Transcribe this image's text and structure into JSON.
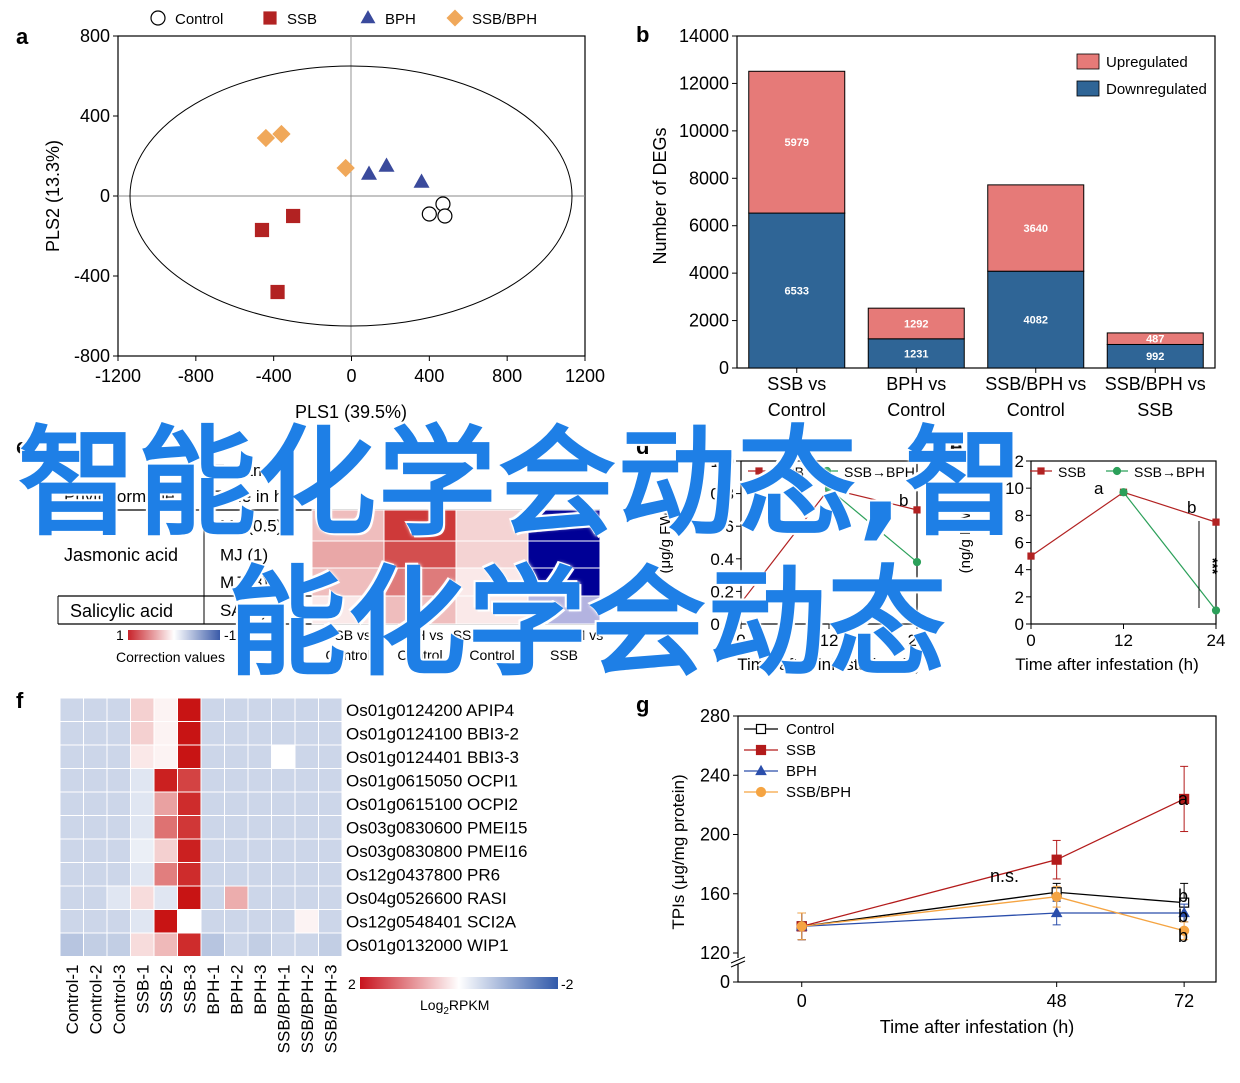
{
  "panels": {
    "a": "a",
    "b": "b",
    "c": "c",
    "d": "d",
    "e": "e",
    "f": "f",
    "g": "g"
  },
  "watermark": {
    "line1": "智能化学会动态,智",
    "line2": "能化学会动态",
    "color": "#1e7fe6"
  },
  "chart_data": [
    {
      "id": "a",
      "type": "scatter",
      "xlabel": "PLS1 (39.5%)",
      "ylabel": "PLS2 (13.3%)",
      "xlim": [
        -1200,
        1200
      ],
      "ylim": [
        -800,
        800
      ],
      "xticks": [
        -1200,
        -800,
        -400,
        0,
        400,
        800,
        1200
      ],
      "yticks": [
        800,
        400,
        0,
        -400,
        -800
      ],
      "legend": [
        "Control",
        "SSB",
        "BPH",
        "SSB/BPH"
      ],
      "series": [
        {
          "name": "Control",
          "marker": "circle",
          "color": "#ffffff",
          "points": [
            [
              470,
              -40
            ],
            [
              400,
              -90
            ],
            [
              480,
              -100
            ]
          ]
        },
        {
          "name": "SSB",
          "marker": "square",
          "color": "#b22222",
          "points": [
            [
              -300,
              -100
            ],
            [
              -460,
              -170
            ],
            [
              -380,
              -480
            ]
          ]
        },
        {
          "name": "BPH",
          "marker": "triangle",
          "color": "#3a4a9c",
          "points": [
            [
              90,
              110
            ],
            [
              180,
              150
            ],
            [
              360,
              70
            ]
          ]
        },
        {
          "name": "SSB/BPH",
          "marker": "diamond",
          "color": "#f0a85a",
          "points": [
            [
              -440,
              290
            ],
            [
              -360,
              310
            ],
            [
              -30,
              140
            ]
          ]
        }
      ]
    },
    {
      "id": "b",
      "type": "bar",
      "stacked": true,
      "ylabel": "Number of DEGs",
      "ylim": [
        0,
        14000
      ],
      "yticks": [
        0,
        2000,
        4000,
        6000,
        8000,
        10000,
        12000,
        14000
      ],
      "categories": [
        [
          "SSB vs",
          "Control"
        ],
        [
          "BPH vs",
          "Control"
        ],
        [
          "SSB/BPH vs",
          "Control"
        ],
        [
          "SSB/BPH vs",
          "SSB"
        ]
      ],
      "series": [
        {
          "name": "Downregulated",
          "color": "#2f6596",
          "values": [
            6533,
            1231,
            4082,
            992
          ]
        },
        {
          "name": "Upregulated",
          "color": "#e67a78",
          "values": [
            5979,
            1292,
            3640,
            487
          ]
        }
      ],
      "legend_position": "top-right"
    },
    {
      "id": "c",
      "type": "heatmap",
      "header": [
        "Phytohormone",
        "Treatment",
        "Time in h"
      ],
      "groups": [
        {
          "name": "Jasmonic acid",
          "rows": [
            "MJ (0.5)",
            "MJ (1)",
            "MJ (3)"
          ]
        },
        {
          "name": "Salicylic acid",
          "rows": [
            "SA (3)"
          ]
        }
      ],
      "columns": [
        [
          "SSB vs",
          "Control"
        ],
        [
          "BPH vs",
          "Control"
        ],
        [
          "SSB/BPH vs",
          "Control"
        ],
        [
          "SSB/BPH vs",
          "SSB"
        ]
      ],
      "values": [
        [
          0.3,
          0.9,
          0.2,
          -1
        ],
        [
          0.4,
          0.8,
          0.2,
          -1
        ],
        [
          0.3,
          0.6,
          0.1,
          -1
        ],
        [
          0.1,
          0.3,
          0.1,
          -0.3
        ]
      ],
      "colorbar": {
        "min_label": "1",
        "max_label": "-1",
        "title": "Correction values"
      }
    },
    {
      "id": "d",
      "type": "line",
      "xlabel": "Time after infestation (h)",
      "ylabel": "(μg/g FW)",
      "xlim": [
        0,
        24
      ],
      "ylim": [
        0,
        1.0
      ],
      "xticks": [
        0,
        12,
        24
      ],
      "yticks": [
        0.0,
        0.2,
        0.4,
        0.6,
        0.8,
        1.0
      ],
      "legend": [
        "SSB",
        "SSB→BPH"
      ],
      "series": [
        {
          "name": "SSB",
          "color": "#b22222",
          "x": [
            0,
            12,
            24
          ],
          "y": [
            0.13,
            0.83,
            0.7
          ]
        },
        {
          "name": "SSB→BPH",
          "color": "#2ca05a",
          "x": [
            12,
            24
          ],
          "y": [
            0.83,
            0.38
          ]
        }
      ],
      "annotations": [
        "c",
        "b"
      ]
    },
    {
      "id": "e",
      "type": "line",
      "xlabel": "Time after infestation (h)",
      "ylabel": "(ng/g FW)",
      "xlim": [
        0,
        24
      ],
      "ylim": [
        0,
        12
      ],
      "xticks": [
        0,
        12,
        24
      ],
      "yticks": [
        0,
        2,
        4,
        6,
        8,
        10,
        12
      ],
      "legend": [
        "SSB",
        "SSB→BPH"
      ],
      "series": [
        {
          "name": "SSB",
          "color": "#b22222",
          "x": [
            0,
            12,
            24
          ],
          "y": [
            5.0,
            9.7,
            7.5
          ]
        },
        {
          "name": "SSB→BPH",
          "color": "#2ca05a",
          "x": [
            12,
            24
          ],
          "y": [
            9.7,
            1.0
          ]
        }
      ],
      "annotations": [
        "a",
        "b",
        "***"
      ]
    },
    {
      "id": "f",
      "type": "heatmap",
      "columns": [
        "Control-1",
        "Control-2",
        "Control-3",
        "SSB-1",
        "SSB-2",
        "SSB-3",
        "BPH-1",
        "BPH-2",
        "BPH-3",
        "SSB/BPH-1",
        "SSB/BPH-2",
        "SSB/BPH-3"
      ],
      "rows": [
        "Os01g0124200 APIP4",
        "Os01g0124100 BBI3-2",
        "Os01g0124401 BBI3-3",
        "Os01g0615050 OCPI1",
        "Os01g0615100 OCPI2",
        "Os03g0830600 PMEI15",
        "Os03g0830800 PMEI16",
        "Os12g0437800 PR6",
        "Os04g0526600 RASI",
        "Os12g0548401 SCI2A",
        "Os01g0132000 WIP1"
      ],
      "values": [
        [
          -0.5,
          -0.5,
          -0.5,
          0.4,
          0.1,
          2.0,
          -0.5,
          -0.5,
          -0.5,
          -0.5,
          -0.5,
          -0.5
        ],
        [
          -0.5,
          -0.5,
          -0.5,
          0.4,
          0.1,
          2.0,
          -0.5,
          -0.5,
          -0.5,
          -0.5,
          -0.5,
          -0.5
        ],
        [
          -0.5,
          -0.5,
          -0.5,
          0.2,
          0.1,
          2.0,
          -0.5,
          -0.5,
          -0.5,
          0.0,
          -0.5,
          -0.5
        ],
        [
          -0.5,
          -0.5,
          -0.5,
          -0.3,
          1.9,
          1.6,
          -0.5,
          -0.5,
          -0.5,
          -0.5,
          -0.5,
          -0.5
        ],
        [
          -0.5,
          -0.5,
          -0.5,
          -0.3,
          0.8,
          1.8,
          -0.5,
          -0.5,
          -0.5,
          -0.5,
          -0.5,
          -0.5
        ],
        [
          -0.5,
          -0.5,
          -0.5,
          -0.3,
          1.2,
          1.7,
          -0.5,
          -0.5,
          -0.5,
          -0.5,
          -0.5,
          -0.5
        ],
        [
          -0.5,
          -0.5,
          -0.5,
          -0.2,
          0.4,
          1.9,
          -0.5,
          -0.5,
          -0.5,
          -0.5,
          -0.5,
          -0.5
        ],
        [
          -0.5,
          -0.5,
          -0.5,
          -0.3,
          1.1,
          1.8,
          -0.5,
          -0.5,
          -0.5,
          -0.5,
          -0.5,
          -0.5
        ],
        [
          -0.5,
          -0.5,
          -0.3,
          0.3,
          -0.3,
          2.0,
          -0.5,
          0.7,
          -0.5,
          -0.5,
          -0.5,
          -0.5
        ],
        [
          -0.5,
          -0.5,
          -0.5,
          -0.3,
          2.0,
          0.0,
          -0.5,
          -0.5,
          -0.5,
          -0.5,
          0.1,
          -0.5
        ],
        [
          -0.7,
          -0.6,
          -0.6,
          0.3,
          0.6,
          1.8,
          -0.7,
          -0.5,
          -0.6,
          -0.5,
          -0.5,
          -0.6
        ]
      ],
      "colorbar": {
        "min_label": "2",
        "max_label": "-2",
        "title_main": "Log",
        "title_sub": "2",
        "title_end": "RPKM"
      }
    },
    {
      "id": "g",
      "type": "line",
      "xlabel": "Time after infestation (h)",
      "ylabel": "TPIs (μg/mg protein)",
      "x": [
        0,
        48,
        72
      ],
      "xticks": [
        0,
        48,
        72
      ],
      "yticks": [
        "0",
        "120",
        "160",
        "200",
        "240",
        "280"
      ],
      "axis_break": true,
      "legend_position": "top-left",
      "series": [
        {
          "name": "Control",
          "color": "#000000",
          "marker": "open-square",
          "y": [
            138,
            161,
            154
          ],
          "err": [
            9,
            6,
            13
          ]
        },
        {
          "name": "SSB",
          "color": "#b31b1b",
          "marker": "square",
          "y": [
            138,
            183,
            224
          ],
          "err": [
            9,
            13,
            22
          ]
        },
        {
          "name": "BPH",
          "color": "#2b4eab",
          "marker": "triangle",
          "y": [
            138,
            147,
            147
          ],
          "err": [
            9,
            8,
            6
          ]
        },
        {
          "name": "SSB/BPH",
          "color": "#f5a442",
          "marker": "circle",
          "y": [
            138,
            158,
            135
          ],
          "err": [
            9,
            7,
            6
          ]
        }
      ],
      "annotations": [
        "n.s.",
        "a",
        "b",
        "b",
        "b"
      ]
    }
  ]
}
